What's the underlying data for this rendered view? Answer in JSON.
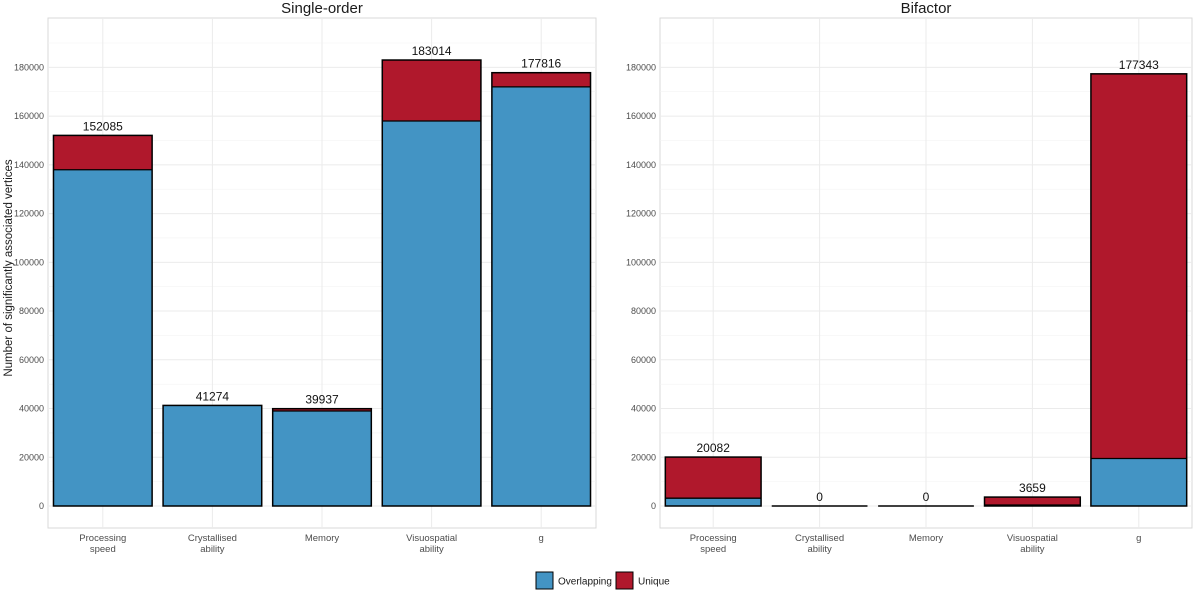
{
  "chart_data": {
    "type": "bar",
    "stacked": true,
    "ylabel": "Number of significantly associated vertices",
    "ylim": [
      0,
      190000
    ],
    "yticks": [
      0,
      20000,
      40000,
      60000,
      80000,
      100000,
      120000,
      140000,
      160000,
      180000
    ],
    "grid": true,
    "legend": {
      "placement": "bottom",
      "entries": [
        {
          "name": "Overlapping",
          "color": "#4394c4"
        },
        {
          "name": "Unique",
          "color": "#b0182c"
        }
      ]
    },
    "panels": [
      {
        "title": "Single-order",
        "categories": [
          [
            "Processing",
            "speed"
          ],
          [
            "Crystallised",
            "ability"
          ],
          [
            "Memory"
          ],
          [
            "Visuospatial",
            "ability"
          ],
          [
            "g"
          ]
        ],
        "series": [
          {
            "name": "Overlapping",
            "values": [
              138000,
              41274,
              39000,
              158000,
              172000
            ]
          },
          {
            "name": "Unique",
            "values": [
              14085,
              0,
              937,
              25014,
              5816
            ]
          }
        ],
        "totals": [
          "152085",
          "41274",
          "39937",
          "183014",
          "177816"
        ]
      },
      {
        "title": "Bifactor",
        "categories": [
          [
            "Processing",
            "speed"
          ],
          [
            "Crystallised",
            "ability"
          ],
          [
            "Memory"
          ],
          [
            "Visuospatial",
            "ability"
          ],
          [
            "g"
          ]
        ],
        "series": [
          {
            "name": "Overlapping",
            "values": [
              3200,
              0,
              0,
              400,
              19500
            ]
          },
          {
            "name": "Unique",
            "values": [
              16882,
              0,
              0,
              3259,
              157843
            ]
          }
        ],
        "totals": [
          "20082",
          "0",
          "0",
          "3659",
          "177343"
        ]
      }
    ]
  }
}
